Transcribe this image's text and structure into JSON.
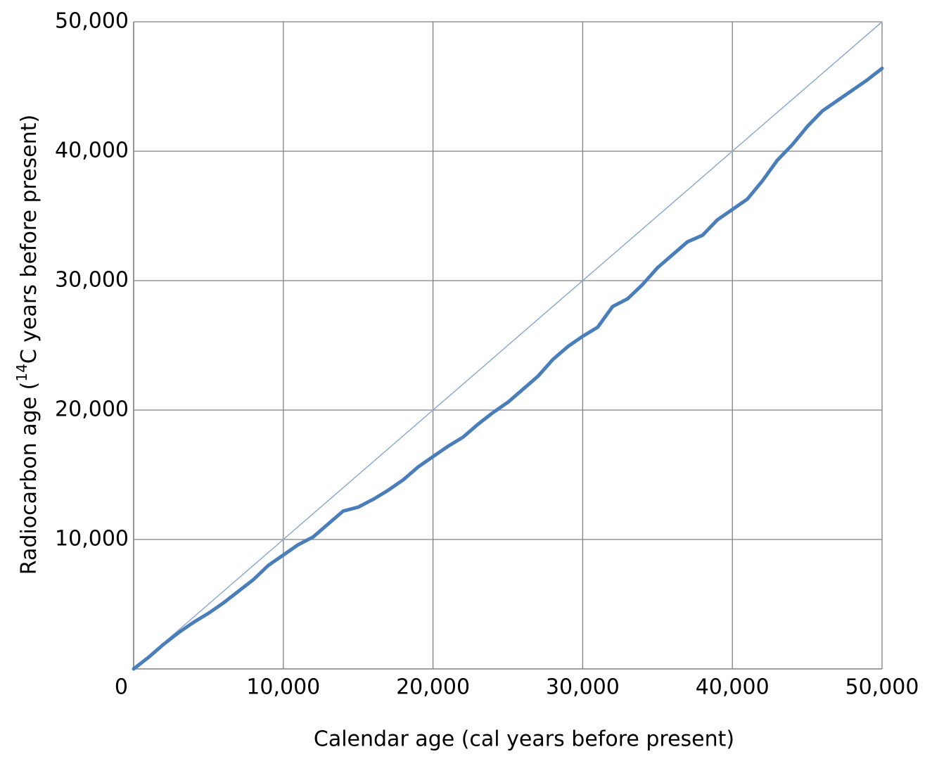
{
  "chart_data": {
    "type": "line",
    "x_label": "Calendar age (cal years before present)",
    "y_label": [
      "Radiocarbon age (",
      "14",
      "C years before present)"
    ],
    "xlim": [
      0,
      50000
    ],
    "ylim": [
      0,
      50000
    ],
    "xticks": [
      0,
      {
        "value": 10000,
        "label": "10,000"
      },
      {
        "value": 20000,
        "label": "20,000"
      },
      {
        "value": 30000,
        "label": "30,000"
      },
      {
        "value": 40000,
        "label": "40,000"
      },
      {
        "value": 50000,
        "label": "50,000"
      }
    ],
    "yticks": [
      {
        "value": 10000,
        "label": "10,000"
      },
      {
        "value": 20000,
        "label": "20,000"
      },
      {
        "value": 30000,
        "label": "30,000"
      },
      {
        "value": 40000,
        "label": "40,000"
      },
      {
        "value": 50000,
        "label": "50,000"
      }
    ],
    "grid": true,
    "series": [
      {
        "color": "#8eabd0",
        "width": 1.5,
        "x": [
          0,
          50000
        ],
        "values": [
          0,
          50000
        ]
      },
      {
        "color": "#4a7ebb",
        "width": 5,
        "x": [
          0,
          1000,
          2000,
          3000,
          4000,
          5000,
          6000,
          7000,
          8000,
          9000,
          10000,
          11000,
          12000,
          13000,
          14000,
          15000,
          16000,
          17000,
          18000,
          19000,
          20000,
          21000,
          22000,
          23000,
          24000,
          25000,
          26000,
          27000,
          28000,
          29000,
          30000,
          31000,
          32000,
          33000,
          34000,
          35000,
          36000,
          37000,
          38000,
          39000,
          40000,
          41000,
          42000,
          43000,
          44000,
          45000,
          46000,
          47000,
          48000,
          49000,
          50000
        ],
        "values": [
          0,
          900,
          1900,
          2800,
          3600,
          4300,
          5100,
          6000,
          6900,
          8000,
          8800,
          9600,
          10200,
          11200,
          12200,
          12500,
          13100,
          13800,
          14600,
          15600,
          16400,
          17200,
          17900,
          18900,
          19800,
          20600,
          21600,
          22600,
          23900,
          24900,
          25700,
          26400,
          28000,
          28600,
          29700,
          31000,
          32000,
          33000,
          33500,
          34700,
          35500,
          36300,
          37700,
          39300,
          40500,
          41900,
          43100,
          43900,
          44700,
          45500,
          46400
        ]
      }
    ]
  }
}
